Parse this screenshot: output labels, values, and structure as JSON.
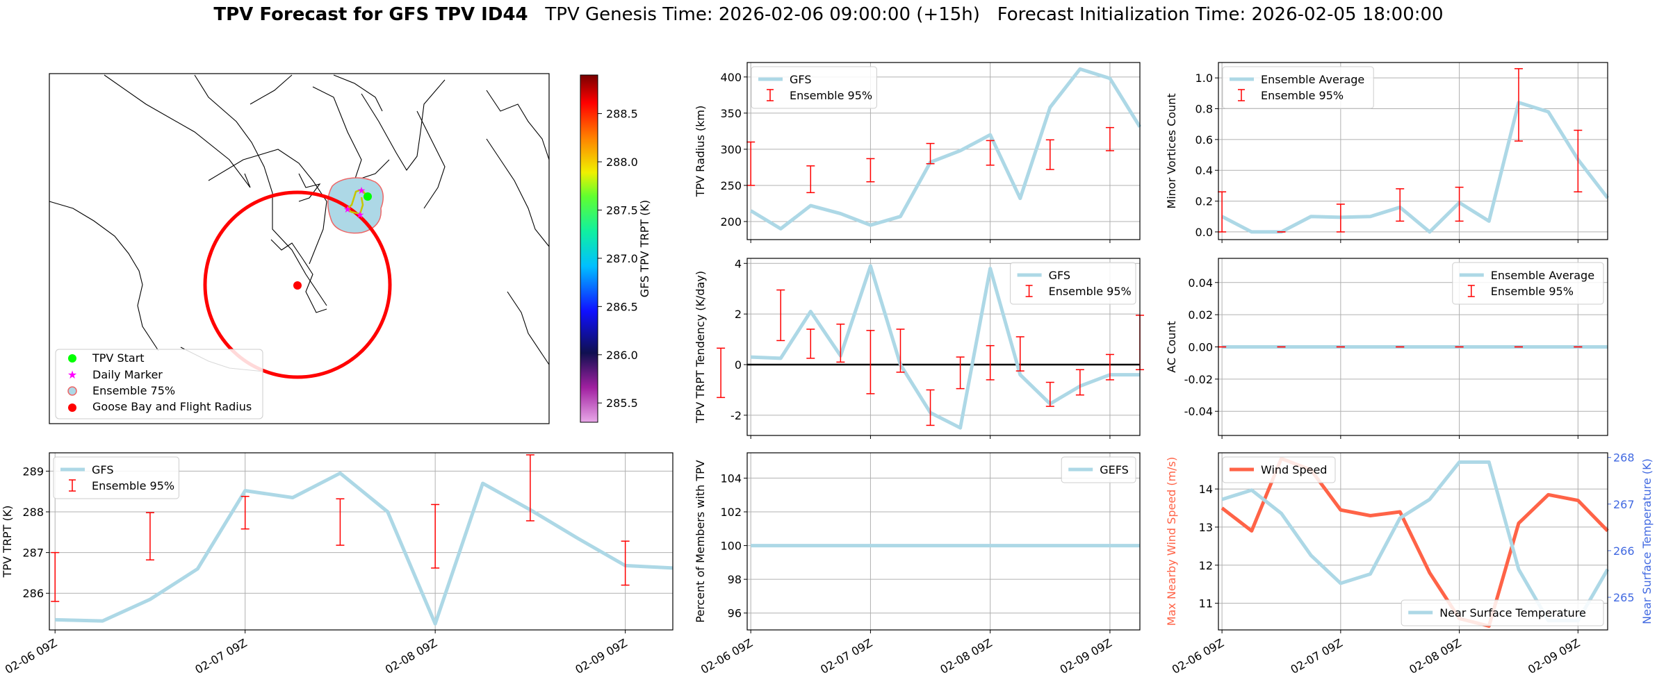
{
  "figure": {
    "title_bold": "TPV Forecast for GFS TPV ID44",
    "title_rest": "   TPV Genesis Time: 2026-02-06 09:00:00 (+15h)   Forecast Initialization Time: 2026-02-05 18:00:00"
  },
  "colors": {
    "gfs_line": "#add8e6",
    "errorbar": "#ff0000",
    "wind": "#ff6347",
    "temp_axis": "#4169e1",
    "track_start": "#00ff00",
    "daily_marker": "#ff00ff",
    "circle": "#ff0000"
  },
  "map": {
    "colorbar_label": "GFS TPV TRPT (K)",
    "colorbar_ticks": [
      "285.5",
      "286.0",
      "286.5",
      "287.0",
      "287.5",
      "288.0",
      "288.5"
    ],
    "colorbar_range": [
      285.3,
      288.9
    ],
    "legend": [
      {
        "label": "TPV Start",
        "marker": "circle",
        "color": "#00ff00"
      },
      {
        "label": "Daily Marker",
        "marker": "star",
        "color": "#ff00ff"
      },
      {
        "label": "Ensemble 75%",
        "marker": "circle-outline",
        "color": "#add8e6"
      },
      {
        "label": "Goose Bay and Flight Radius",
        "marker": "circle",
        "color": "#ff0000"
      }
    ]
  },
  "chart_data": [
    {
      "id": "radius",
      "type": "line",
      "xlabel": "",
      "ylabel": "TPV Radius (km)",
      "ylim": [
        175,
        420
      ],
      "yticks": [
        200,
        250,
        300,
        350,
        400
      ],
      "xticks": [
        "02-06 09Z",
        "02-07 09Z",
        "02-08 09Z",
        "02-09 09Z"
      ],
      "grid": true,
      "legend_position": "top-left",
      "series": [
        {
          "name": "GFS",
          "kind": "line",
          "x": [
            0,
            0.25,
            0.5,
            0.75,
            1,
            1.25,
            1.5,
            1.75,
            2,
            2.25,
            2.5,
            2.75,
            3,
            3.25
          ],
          "values": [
            215,
            190,
            222,
            211,
            195,
            207,
            282,
            298,
            320,
            232,
            358,
            411,
            398,
            331
          ]
        },
        {
          "name": "Ensemble 95%",
          "kind": "errorbar",
          "x": [
            0,
            0.5,
            1,
            1.5,
            2,
            2.5,
            3
          ],
          "low": [
            250,
            240,
            255,
            280,
            278,
            272,
            298
          ],
          "high": [
            310,
            277,
            287,
            308,
            312,
            313,
            330
          ]
        }
      ]
    },
    {
      "id": "minor",
      "type": "line",
      "ylabel": "Minor Vortices Count",
      "ylim": [
        -0.05,
        1.1
      ],
      "yticks": [
        0.0,
        0.2,
        0.4,
        0.6,
        0.8,
        1.0
      ],
      "yfmt": 1,
      "xticks": [
        "02-06 09Z",
        "02-07 09Z",
        "02-08 09Z",
        "02-09 09Z"
      ],
      "grid": true,
      "legend_position": "top-left",
      "series": [
        {
          "name": "Ensemble Average",
          "kind": "line",
          "x": [
            0,
            0.25,
            0.5,
            0.75,
            1,
            1.25,
            1.5,
            1.75,
            2,
            2.25,
            2.5,
            2.75,
            3,
            3.25
          ],
          "values": [
            0.1,
            0.0,
            0.0,
            0.1,
            0.095,
            0.1,
            0.16,
            0.0,
            0.19,
            0.07,
            0.84,
            0.78,
            0.47,
            0.22
          ]
        },
        {
          "name": "Ensemble 95%",
          "kind": "errorbar",
          "x": [
            0,
            0.5,
            1,
            1.5,
            2,
            2.5,
            3
          ],
          "low": [
            0.0,
            0.0,
            0.0,
            0.07,
            0.07,
            0.59,
            0.26
          ],
          "high": [
            0.26,
            0.0,
            0.18,
            0.28,
            0.29,
            1.06,
            0.66
          ]
        }
      ]
    },
    {
      "id": "tendency",
      "type": "line",
      "ylabel": "TPV TRPT Tendency (K/day)",
      "ylim": [
        -2.8,
        4.2
      ],
      "yticks": [
        -2,
        0,
        2,
        4
      ],
      "xticks": [
        "02-06 09Z",
        "02-07 09Z",
        "02-08 09Z",
        "02-09 09Z"
      ],
      "grid": true,
      "zero_line": true,
      "legend_position": "top-right",
      "series": [
        {
          "name": "GFS",
          "kind": "line",
          "x": [
            0,
            0.25,
            0.5,
            0.75,
            1,
            1.25,
            1.5,
            1.75,
            2,
            2.25,
            2.5,
            2.75,
            3,
            3.25
          ],
          "values": [
            0.3,
            0.25,
            2.1,
            0.35,
            3.9,
            0.0,
            -1.9,
            -2.5,
            3.8,
            -0.4,
            -1.55,
            -0.85,
            -0.4,
            -0.4
          ]
        },
        {
          "name": "Ensemble 95%",
          "kind": "errorbar",
          "x": [
            -0.25,
            0.25,
            0.5,
            0.75,
            1,
            1.25,
            1.5,
            1.75,
            2,
            2.25,
            2.5,
            2.75,
            3,
            3.25
          ],
          "low": [
            -1.3,
            0.95,
            0.25,
            0.1,
            -1.15,
            -0.3,
            -2.4,
            -0.95,
            -0.6,
            -0.25,
            -1.65,
            -1.2,
            -0.6,
            -0.2
          ],
          "high": [
            0.65,
            2.95,
            1.4,
            1.6,
            1.35,
            1.4,
            -1.0,
            0.3,
            0.75,
            1.1,
            -0.7,
            -0.2,
            0.4,
            1.95
          ]
        }
      ]
    },
    {
      "id": "ac",
      "type": "line",
      "ylabel": "AC Count",
      "ylim": [
        -0.055,
        0.055
      ],
      "yticks": [
        -0.04,
        -0.02,
        0.0,
        0.02,
        0.04
      ],
      "yfmt": 2,
      "xticks": [
        "02-06 09Z",
        "02-07 09Z",
        "02-08 09Z",
        "02-09 09Z"
      ],
      "grid": true,
      "legend_position": "top-right",
      "series": [
        {
          "name": "Ensemble Average",
          "kind": "line",
          "x": [
            0,
            0.25,
            0.5,
            0.75,
            1,
            1.25,
            1.5,
            1.75,
            2,
            2.25,
            2.5,
            2.75,
            3,
            3.25
          ],
          "values": [
            0,
            0,
            0,
            0,
            0,
            0,
            0,
            0,
            0,
            0,
            0,
            0,
            0,
            0
          ]
        },
        {
          "name": "Ensemble 95%",
          "kind": "errorbar",
          "x": [
            0,
            0.5,
            1,
            1.5,
            2,
            2.5,
            3
          ],
          "low": [
            0,
            0,
            0,
            0,
            0,
            0,
            0
          ],
          "high": [
            0,
            0,
            0,
            0,
            0,
            0,
            0
          ]
        }
      ]
    },
    {
      "id": "trpt",
      "type": "line",
      "ylabel": "TPV TRPT (K)",
      "ylim": [
        285.1,
        289.45
      ],
      "yticks": [
        286,
        287,
        288,
        289
      ],
      "xticks": [
        "02-06 09Z",
        "02-07 09Z",
        "02-08 09Z",
        "02-09 09Z"
      ],
      "grid": true,
      "legend_position": "top-left",
      "series": [
        {
          "name": "GFS",
          "kind": "line",
          "x": [
            0,
            0.25,
            0.5,
            0.75,
            1,
            1.25,
            1.5,
            1.75,
            2,
            2.25,
            2.5,
            2.75,
            3,
            3.25
          ],
          "values": [
            285.35,
            285.32,
            285.85,
            286.6,
            288.52,
            288.35,
            288.95,
            288.0,
            285.25,
            288.7,
            288.05,
            287.35,
            286.68,
            286.62
          ]
        },
        {
          "name": "Ensemble 95%",
          "kind": "errorbar",
          "x": [
            0,
            0.5,
            1,
            1.5,
            2,
            2.5,
            3
          ],
          "low": [
            285.8,
            286.82,
            287.58,
            287.18,
            286.62,
            287.78,
            286.2
          ],
          "high": [
            287.0,
            287.98,
            288.38,
            288.32,
            288.18,
            289.4,
            287.28
          ]
        }
      ]
    },
    {
      "id": "percent",
      "type": "line",
      "ylabel": "Percent of Members with TPV",
      "ylim": [
        95,
        105.5
      ],
      "yticks": [
        96,
        98,
        100,
        102,
        104
      ],
      "xticks": [
        "02-06 09Z",
        "02-07 09Z",
        "02-08 09Z",
        "02-09 09Z"
      ],
      "grid": true,
      "legend_position": "top-right",
      "series": [
        {
          "name": "GEFS",
          "kind": "line",
          "x": [
            0,
            3.25
          ],
          "values": [
            100,
            100
          ]
        }
      ]
    },
    {
      "id": "wind",
      "type": "line",
      "ylabel": "Max Nearby Wind Speed (m/s)",
      "ylabel_right": "Near Surface Temperature (K)",
      "ylim": [
        10.3,
        14.95
      ],
      "yticks": [
        11,
        12,
        13,
        14
      ],
      "ylim_right": [
        264.3,
        268.1
      ],
      "yticks_right": [
        265,
        266,
        267,
        268
      ],
      "xticks": [
        "02-06 09Z",
        "02-07 09Z",
        "02-08 09Z",
        "02-09 09Z"
      ],
      "grid": true,
      "legend_position": "top-left / bottom-right",
      "series": [
        {
          "name": "Wind Speed",
          "kind": "line",
          "axis": "left",
          "x": [
            0,
            0.25,
            0.5,
            0.75,
            1,
            1.25,
            1.5,
            1.75,
            2,
            2.25,
            2.5,
            2.75,
            3,
            3.25
          ],
          "values": [
            13.5,
            12.9,
            14.8,
            14.5,
            13.45,
            13.3,
            13.4,
            11.8,
            10.6,
            10.4,
            13.1,
            13.85,
            13.7,
            12.9
          ]
        },
        {
          "name": "Near Surface Temperature",
          "kind": "line",
          "axis": "right",
          "x": [
            0,
            0.25,
            0.5,
            0.75,
            1,
            1.25,
            1.5,
            1.75,
            2,
            2.25,
            2.5,
            2.75,
            3,
            3.25
          ],
          "values": [
            267.1,
            267.3,
            266.8,
            265.9,
            265.3,
            265.5,
            266.7,
            267.1,
            267.9,
            267.9,
            265.6,
            264.5,
            264.5,
            265.6
          ]
        }
      ]
    }
  ]
}
